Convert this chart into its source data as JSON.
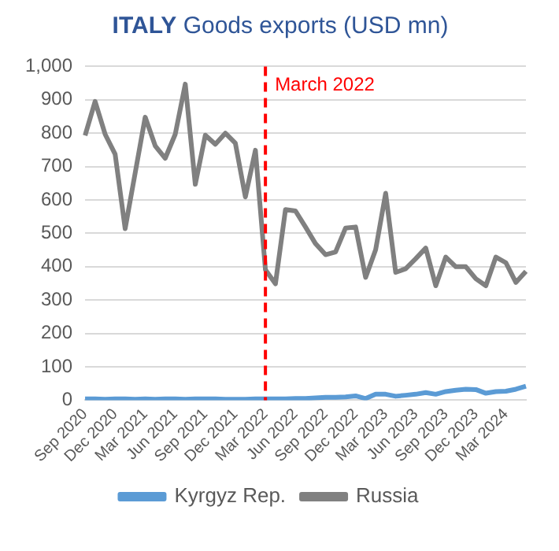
{
  "chart_data": {
    "type": "line",
    "title": "ITALY Goods exports (USD mn)",
    "categories": [
      "Sep 2020",
      null,
      null,
      "Dec 2020",
      null,
      null,
      "Mar 2021",
      null,
      null,
      "Jun 2021",
      null,
      null,
      "Sep 2021",
      null,
      null,
      "Dec 2021",
      null,
      null,
      "Mar 2022",
      null,
      null,
      "Jun 2022",
      null,
      null,
      "Sep 2022",
      null,
      null,
      "Dec 2022",
      null,
      null,
      "Mar 2023",
      null,
      null,
      "Jun 2023",
      null,
      null,
      "Sep 2023",
      null,
      null,
      "Dec 2023",
      null,
      null,
      "Mar 2024",
      null,
      null
    ],
    "series": [
      {
        "name": "Kyrgyz Rep.",
        "color": "#5b9bd5",
        "values": [
          4,
          4,
          3,
          4,
          4,
          3,
          4,
          3,
          4,
          4,
          3,
          4,
          4,
          4,
          3,
          3,
          3,
          4,
          4,
          4,
          4,
          5,
          5,
          7,
          9,
          9,
          10,
          13,
          5,
          18,
          18,
          12,
          15,
          18,
          23,
          18,
          26,
          30,
          33,
          32,
          21,
          26,
          27,
          33,
          42
        ]
      },
      {
        "name": "Russia",
        "color": "#808080",
        "values": [
          793,
          895,
          797,
          737,
          514,
          681,
          848,
          762,
          725,
          797,
          947,
          647,
          794,
          767,
          800,
          770,
          609,
          749,
          391,
          349,
          571,
          567,
          519,
          469,
          436,
          444,
          516,
          519,
          368,
          451,
          620,
          383,
          394,
          424,
          456,
          343,
          429,
          400,
          400,
          364,
          343,
          429,
          412,
          353,
          386
        ]
      }
    ],
    "ylim": [
      0,
      1000
    ],
    "yticks": [
      0,
      100,
      200,
      300,
      400,
      500,
      600,
      700,
      800,
      900,
      {
        "value": 1000,
        "label": "1,000"
      }
    ],
    "grid": "y",
    "legend": "bottom",
    "marker": "none",
    "line_style": "solid",
    "ref_lines": [
      {
        "axis": "x",
        "value": "Mar 2022",
        "label": "March 2022",
        "color": "#ff0000",
        "line_style": "dashed"
      }
    ]
  }
}
